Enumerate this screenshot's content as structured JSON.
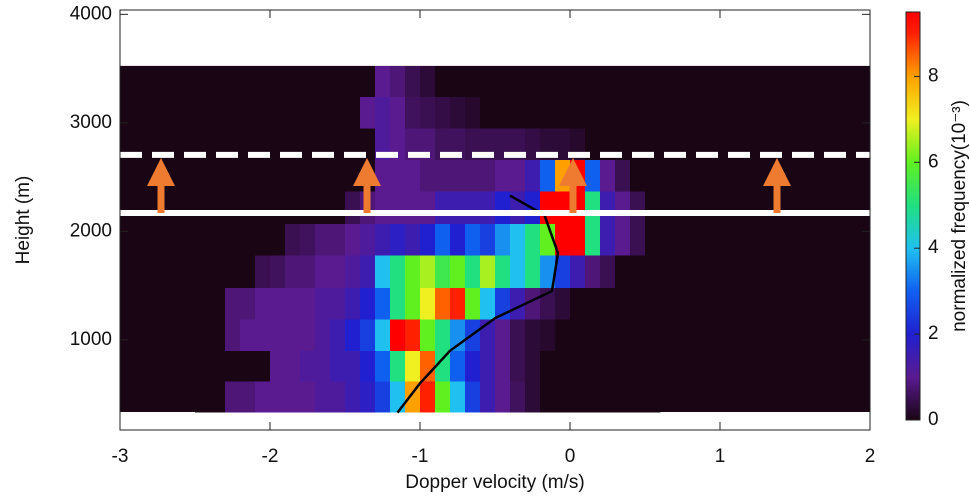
{
  "chart_data": {
    "type": "heatmap",
    "xlabel": "Dopper velocity (m/s)",
    "ylabel": "Height (m)",
    "colorbar_label": "normalized frequency(10⁻³)",
    "xlim": [
      -3,
      2
    ],
    "xticks": [
      -3,
      -2,
      -1,
      0,
      1,
      2
    ],
    "ylim": [
      170,
      4040
    ],
    "yticks": [
      1000,
      2000,
      3000,
      4000
    ],
    "clim": [
      0,
      9.5
    ],
    "cticks": [
      0,
      2,
      4,
      6,
      8
    ],
    "colormap": [
      [
        0,
        "#1a0514"
      ],
      [
        1,
        "#5a1a90"
      ],
      [
        2,
        "#2020d0"
      ],
      [
        3,
        "#1060f0"
      ],
      [
        4,
        "#20c0f0"
      ],
      [
        5,
        "#20e080"
      ],
      [
        6,
        "#60f020"
      ],
      [
        7,
        "#f0f020"
      ],
      [
        8,
        "#ffa000"
      ],
      [
        9,
        "#ff2000"
      ],
      [
        9.5,
        "#ff0000"
      ]
    ],
    "xbins": [
      -2.5,
      -2.4,
      -2.3,
      -2.2,
      -2.1,
      -2.0,
      -1.9,
      -1.8,
      -1.7,
      -1.6,
      -1.5,
      -1.4,
      -1.3,
      -1.2,
      -1.1,
      -1.0,
      -0.9,
      -0.8,
      -0.7,
      -0.6,
      -0.5,
      -0.4,
      -0.3,
      -0.2,
      -0.1,
      0.0,
      0.1,
      0.2,
      0.3,
      0.4,
      0.5,
      0.6
    ],
    "ybins": [
      336,
      620,
      900,
      1190,
      1480,
      1780,
      2070,
      2370,
      2660,
      2950,
      3240,
      3525
    ],
    "matrix": [
      [
        0,
        0,
        0.8,
        0.8,
        1,
        1,
        1,
        1,
        1.2,
        1.2,
        1.5,
        1.8,
        2.5,
        4,
        8,
        9,
        6,
        4,
        2.5,
        1.5,
        1,
        0.6,
        0.3,
        0,
        0,
        0,
        0,
        0,
        0,
        0,
        0
      ],
      [
        0,
        0,
        0,
        0,
        0,
        1,
        1,
        1.2,
        1.2,
        1.5,
        1.5,
        2,
        3,
        5,
        7,
        8.5,
        5,
        3,
        2,
        1.5,
        1,
        0.5,
        0.3,
        0,
        0,
        0,
        0,
        0,
        0,
        0,
        0
      ],
      [
        0,
        0,
        0.8,
        1,
        1,
        1,
        1,
        1,
        1.2,
        1.5,
        2,
        2.5,
        4,
        9.5,
        9,
        6,
        5,
        3.5,
        2.5,
        1.5,
        1,
        0.5,
        0.3,
        0.2,
        0,
        0,
        0,
        0,
        0,
        0,
        0
      ],
      [
        0,
        0,
        0.8,
        0.8,
        1,
        1,
        1,
        1,
        1.2,
        1.2,
        1.5,
        2,
        3,
        5,
        6,
        7,
        8.5,
        9,
        6,
        4,
        2.5,
        1.5,
        0.8,
        0.5,
        0.3,
        0,
        0,
        0,
        0,
        0,
        0
      ],
      [
        0,
        0,
        0,
        0,
        0.5,
        0.6,
        0.8,
        0.8,
        1,
        1,
        1.2,
        1.5,
        4,
        5,
        6,
        6.5,
        5.5,
        6,
        5,
        6.5,
        5,
        4,
        5,
        3.5,
        2.5,
        1.5,
        0.8,
        0.5,
        0,
        0,
        0
      ],
      [
        0,
        0,
        0,
        0,
        0,
        0,
        0.5,
        0.6,
        0.8,
        0.8,
        1,
        1.2,
        1.5,
        1.8,
        1.5,
        2,
        3,
        2,
        3,
        2.5,
        3.5,
        4,
        5,
        6,
        9.5,
        9.5,
        5,
        1.5,
        1,
        0.5,
        0
      ],
      [
        0,
        0,
        0,
        0,
        0,
        0,
        0,
        0,
        0,
        0,
        0.5,
        0.8,
        1,
        1,
        1,
        1,
        1.5,
        1.5,
        1.5,
        1.5,
        2,
        1.5,
        2,
        9.5,
        9.5,
        9.5,
        5,
        1.5,
        1,
        0.5,
        0
      ],
      [
        0,
        0,
        0,
        0,
        0,
        0,
        0,
        0,
        0,
        0,
        0,
        0,
        1,
        1,
        1,
        0.8,
        0.8,
        0.8,
        0.8,
        0.8,
        1,
        1,
        1.5,
        3,
        8,
        9.5,
        3,
        1,
        0.5,
        0,
        0
      ],
      [
        0,
        0,
        0,
        0,
        0,
        0,
        0,
        0,
        0,
        0,
        0,
        0,
        1.2,
        1,
        0.8,
        0.8,
        0.6,
        0.6,
        0.5,
        0.5,
        0.5,
        0.5,
        0.4,
        0.3,
        0.3,
        0.2,
        0,
        0,
        0,
        0,
        0
      ],
      [
        0,
        0,
        0,
        0,
        0,
        0,
        0,
        0,
        0,
        0,
        0,
        1,
        1.2,
        1,
        0.6,
        0.5,
        0.4,
        0.3,
        0.2,
        0,
        0,
        0,
        0,
        0,
        0,
        0,
        0,
        0,
        0,
        0,
        0
      ],
      [
        0,
        0,
        0,
        0,
        0,
        0,
        0,
        0,
        0,
        0,
        0,
        0,
        1,
        0.8,
        0.5,
        0.3,
        0,
        0,
        0,
        0,
        0,
        0,
        0,
        0,
        0,
        0,
        0,
        0,
        0,
        0,
        0
      ]
    ],
    "lines": [
      {
        "color": "#000000",
        "x": [
          -1.15,
          -1.0,
          -0.8,
          -0.5,
          -0.12,
          -0.08,
          -0.17,
          -0.4
        ],
        "y": [
          330,
          600,
          900,
          1200,
          1450,
          1800,
          2150,
          2330
        ]
      }
    ],
    "hlines": [
      {
        "value": 2170,
        "dashed": false,
        "color": "#ffffff"
      },
      {
        "value": 2705,
        "dashed": true,
        "color": "#ffffff"
      }
    ]
  }
}
